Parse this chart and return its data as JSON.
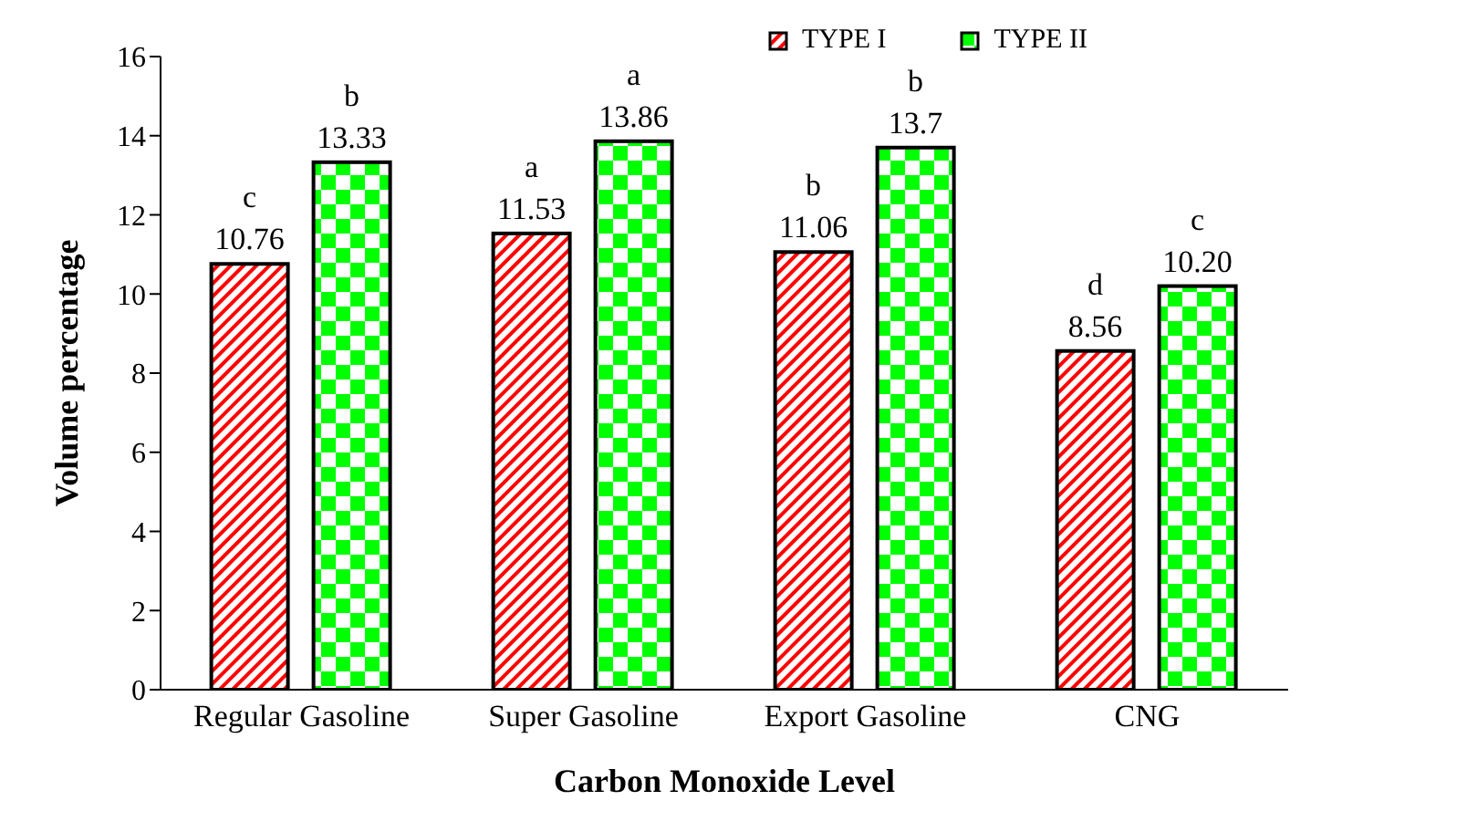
{
  "chart_data": {
    "type": "bar",
    "xlabel": "Carbon Monoxide Level",
    "ylabel": "Volume percentage",
    "categories": [
      "Regular Gasoline",
      "Super Gasoline",
      "Export Gasoline",
      "CNG"
    ],
    "series": [
      {
        "name": "TYPE I",
        "color": "#ff0000",
        "values": [
          10.76,
          11.53,
          11.06,
          8.56
        ],
        "value_labels": [
          "10.76",
          "11.53",
          "11.06",
          "8.56"
        ]
      },
      {
        "name": "TYPE II",
        "color": "#00ff00",
        "values": [
          13.33,
          13.86,
          13.7,
          10.2
        ],
        "value_labels": [
          "13.33",
          "13.86",
          "13.7",
          "10.20"
        ]
      }
    ],
    "annotations": [
      "c",
      "b",
      "a",
      "a",
      "b",
      "b",
      "d",
      "c"
    ],
    "ylim": [
      0,
      16
    ],
    "yticks": [
      0,
      2,
      4,
      6,
      8,
      10,
      12,
      14,
      16
    ],
    "grid": false,
    "legend": "top right"
  }
}
